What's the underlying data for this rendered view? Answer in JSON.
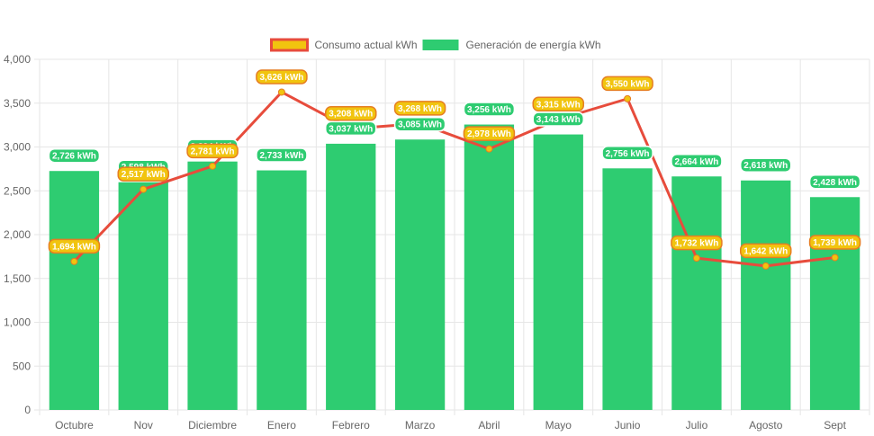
{
  "chart_data": {
    "type": "bar",
    "categories": [
      "Octubre",
      "Nov",
      "Diciembre",
      "Enero",
      "Febrero",
      "Marzo",
      "Abril",
      "Mayo",
      "Junio",
      "Julio",
      "Agosto",
      "Sept"
    ],
    "series": [
      {
        "name": "Generación de energía kWh",
        "kind": "bar",
        "color": "#2ecc71",
        "values": [
          2726,
          2598,
          2834,
          2733,
          3037,
          3085,
          3256,
          3143,
          2756,
          2664,
          2618,
          2428
        ],
        "labels": [
          "2,726 kWh",
          "2,598 kWh",
          "2,834 kWh",
          "2,733 kWh",
          "3,037 kWh",
          "3,085 kWh",
          "3,256 kWh",
          "3,143 kWh",
          "2,756 kWh",
          "2,664 kWh",
          "2,618 kWh",
          "2,428 kWh"
        ]
      },
      {
        "name": "Consumo actual kWh",
        "kind": "line",
        "color": "#e74c3c",
        "point_color": "#f1c40f",
        "values": [
          1694,
          2517,
          2781,
          3626,
          3208,
          3268,
          2978,
          3315,
          3550,
          1732,
          1642,
          1739
        ],
        "labels": [
          "1,694 kWh",
          "2,517 kWh",
          "2,781 kWh",
          "3,626 kWh",
          "3,208 kWh",
          "3,268 kWh",
          "2,978 kWh",
          "3,315 kWh",
          "3,550 kWh",
          "1,732 kWh",
          "1,642 kWh",
          "1,739 kWh"
        ]
      }
    ],
    "y_ticks": [
      "0",
      "500",
      "1,000",
      "1,500",
      "2,000",
      "2,500",
      "3,000",
      "3,500",
      "4,000"
    ],
    "ylim": [
      0,
      4000
    ],
    "ystep": 500,
    "grid": true,
    "legend": "top-center",
    "title": "",
    "xlabel": "",
    "ylabel": ""
  }
}
